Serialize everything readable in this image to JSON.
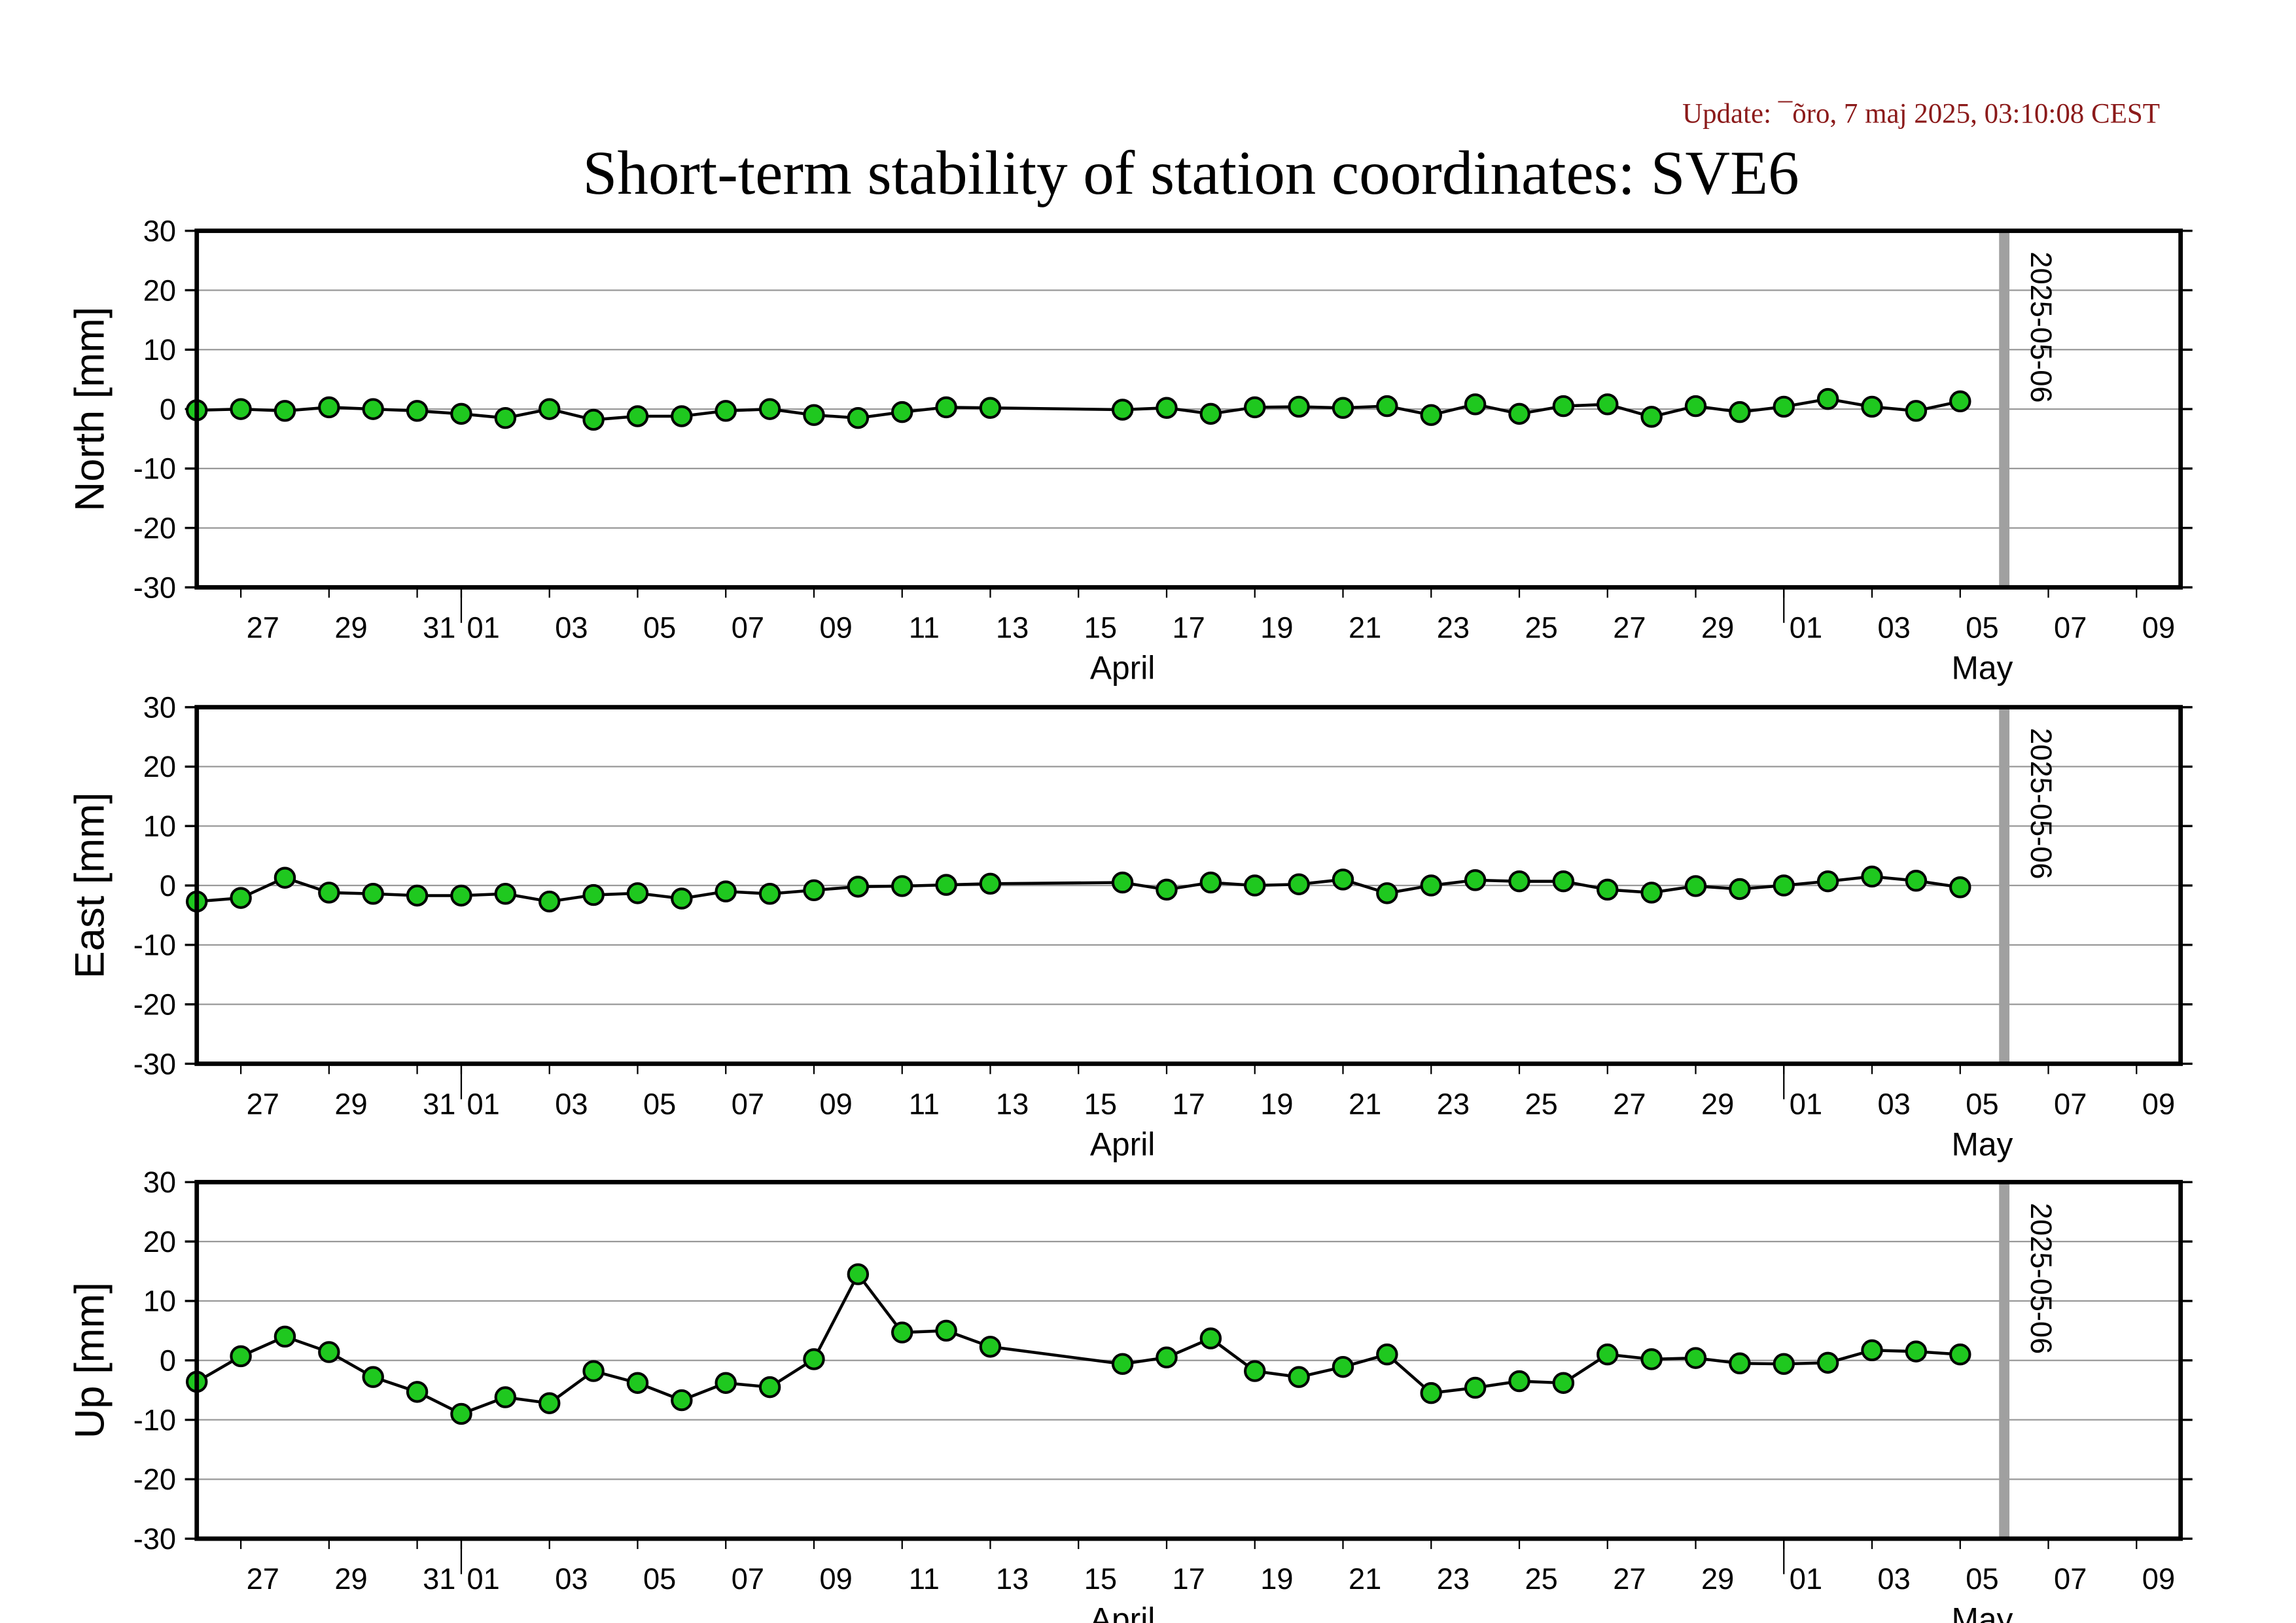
{
  "title": "Short-term stability of station coordinates: SVE6",
  "update": "Update: ¯õro, 7 maj 2025, 03:10:08 CEST",
  "chart_data": [
    {
      "type": "line",
      "ylabel": "North [mm]",
      "x": [
        "2025-03-26",
        "2025-03-27",
        "2025-03-28",
        "2025-03-29",
        "2025-03-30",
        "2025-03-31",
        "2025-04-01",
        "2025-04-02",
        "2025-04-03",
        "2025-04-04",
        "2025-04-05",
        "2025-04-06",
        "2025-04-07",
        "2025-04-08",
        "2025-04-09",
        "2025-04-10",
        "2025-04-11",
        "2025-04-12",
        "2025-04-13",
        "2025-04-16",
        "2025-04-17",
        "2025-04-18",
        "2025-04-19",
        "2025-04-20",
        "2025-04-21",
        "2025-04-22",
        "2025-04-23",
        "2025-04-24",
        "2025-04-25",
        "2025-04-26",
        "2025-04-27",
        "2025-04-28",
        "2025-04-29",
        "2025-04-30",
        "2025-05-01",
        "2025-05-02",
        "2025-05-03",
        "2025-05-04",
        "2025-05-05"
      ],
      "values": [
        -0.2,
        0,
        -0.3,
        0.3,
        0,
        -0.3,
        -0.8,
        -1.5,
        0,
        -1.8,
        -1.2,
        -1.2,
        -0.3,
        0,
        -1,
        -1.5,
        -0.5,
        0.3,
        0.2,
        -0.1,
        0.2,
        -0.8,
        0.3,
        0.4,
        0.2,
        0.5,
        -1,
        0.8,
        -0.8,
        0.5,
        0.8,
        -1.3,
        0.5,
        -0.5,
        0.4,
        1.7,
        0.4,
        -0.3,
        1.3
      ],
      "marker_color": "#1fc81f",
      "line_color": "#000000",
      "xlim": [
        "2025-03-26",
        "2025-05-10"
      ],
      "xticks": [
        {
          "value": "2025-03-27",
          "label": "27"
        },
        {
          "value": "2025-03-29",
          "label": "29"
        },
        {
          "value": "2025-03-31",
          "label": "31"
        },
        {
          "value": "2025-04-01",
          "label": "01"
        },
        {
          "value": "2025-04-03",
          "label": "03"
        },
        {
          "value": "2025-04-05",
          "label": "05"
        },
        {
          "value": "2025-04-07",
          "label": "07"
        },
        {
          "value": "2025-04-09",
          "label": "09"
        },
        {
          "value": "2025-04-11",
          "label": "11"
        },
        {
          "value": "2025-04-13",
          "label": "13"
        },
        {
          "value": "2025-04-15",
          "label": "15"
        },
        {
          "value": "2025-04-17",
          "label": "17"
        },
        {
          "value": "2025-04-19",
          "label": "19"
        },
        {
          "value": "2025-04-21",
          "label": "21"
        },
        {
          "value": "2025-04-23",
          "label": "23"
        },
        {
          "value": "2025-04-25",
          "label": "25"
        },
        {
          "value": "2025-04-27",
          "label": "27"
        },
        {
          "value": "2025-04-29",
          "label": "29"
        },
        {
          "value": "2025-05-01",
          "label": "01"
        },
        {
          "value": "2025-05-03",
          "label": "03"
        },
        {
          "value": "2025-05-05",
          "label": "05"
        },
        {
          "value": "2025-05-07",
          "label": "07"
        },
        {
          "value": "2025-05-09",
          "label": "09"
        }
      ],
      "months": [
        {
          "value": "2025-04",
          "label": "April"
        },
        {
          "value": "2025-05",
          "label": "May"
        }
      ],
      "ylim": [
        -30,
        30
      ],
      "yticks": [
        -30,
        -20,
        -10,
        0,
        10,
        20,
        30
      ],
      "grid": true,
      "vline": "2025-05-06"
    },
    {
      "type": "line",
      "ylabel": "East [mm]",
      "x": [
        "2025-03-26",
        "2025-03-27",
        "2025-03-28",
        "2025-03-29",
        "2025-03-30",
        "2025-03-31",
        "2025-04-01",
        "2025-04-02",
        "2025-04-03",
        "2025-04-04",
        "2025-04-05",
        "2025-04-06",
        "2025-04-07",
        "2025-04-08",
        "2025-04-09",
        "2025-04-10",
        "2025-04-11",
        "2025-04-12",
        "2025-04-13",
        "2025-04-16",
        "2025-04-17",
        "2025-04-18",
        "2025-04-19",
        "2025-04-20",
        "2025-04-21",
        "2025-04-22",
        "2025-04-23",
        "2025-04-24",
        "2025-04-25",
        "2025-04-26",
        "2025-04-27",
        "2025-04-28",
        "2025-04-29",
        "2025-04-30",
        "2025-05-01",
        "2025-05-02",
        "2025-05-03",
        "2025-05-04",
        "2025-05-05"
      ],
      "values": [
        -2.7,
        -2.1,
        1.3,
        -1.2,
        -1.4,
        -1.7,
        -1.7,
        -1.4,
        -2.7,
        -1.6,
        -1.3,
        -2.2,
        -1,
        -1.4,
        -0.8,
        -0.2,
        -0.1,
        0.1,
        0.3,
        0.5,
        -0.7,
        0.5,
        0,
        0.2,
        1,
        -1.3,
        0,
        0.9,
        0.7,
        0.7,
        -0.7,
        -1.2,
        -0.1,
        -0.6,
        0,
        0.7,
        1.5,
        0.8,
        -0.3
      ],
      "marker_color": "#1fc81f",
      "line_color": "#000000",
      "xlim": [
        "2025-03-26",
        "2025-05-10"
      ],
      "xticks": [
        {
          "value": "2025-03-27",
          "label": "27"
        },
        {
          "value": "2025-03-29",
          "label": "29"
        },
        {
          "value": "2025-03-31",
          "label": "31"
        },
        {
          "value": "2025-04-01",
          "label": "01"
        },
        {
          "value": "2025-04-03",
          "label": "03"
        },
        {
          "value": "2025-04-05",
          "label": "05"
        },
        {
          "value": "2025-04-07",
          "label": "07"
        },
        {
          "value": "2025-04-09",
          "label": "09"
        },
        {
          "value": "2025-04-11",
          "label": "11"
        },
        {
          "value": "2025-04-13",
          "label": "13"
        },
        {
          "value": "2025-04-15",
          "label": "15"
        },
        {
          "value": "2025-04-17",
          "label": "17"
        },
        {
          "value": "2025-04-19",
          "label": "19"
        },
        {
          "value": "2025-04-21",
          "label": "21"
        },
        {
          "value": "2025-04-23",
          "label": "23"
        },
        {
          "value": "2025-04-25",
          "label": "25"
        },
        {
          "value": "2025-04-27",
          "label": "27"
        },
        {
          "value": "2025-04-29",
          "label": "29"
        },
        {
          "value": "2025-05-01",
          "label": "01"
        },
        {
          "value": "2025-05-03",
          "label": "03"
        },
        {
          "value": "2025-05-05",
          "label": "05"
        },
        {
          "value": "2025-05-07",
          "label": "07"
        },
        {
          "value": "2025-05-09",
          "label": "09"
        }
      ],
      "months": [
        {
          "value": "2025-04",
          "label": "April"
        },
        {
          "value": "2025-05",
          "label": "May"
        }
      ],
      "ylim": [
        -30,
        30
      ],
      "yticks": [
        -30,
        -20,
        -10,
        0,
        10,
        20,
        30
      ],
      "grid": true,
      "vline": "2025-05-06"
    },
    {
      "type": "line",
      "ylabel": "Up [mm]",
      "x": [
        "2025-03-26",
        "2025-03-27",
        "2025-03-28",
        "2025-03-29",
        "2025-03-30",
        "2025-03-31",
        "2025-04-01",
        "2025-04-02",
        "2025-04-03",
        "2025-04-04",
        "2025-04-05",
        "2025-04-06",
        "2025-04-07",
        "2025-04-08",
        "2025-04-09",
        "2025-04-10",
        "2025-04-11",
        "2025-04-12",
        "2025-04-13",
        "2025-04-16",
        "2025-04-17",
        "2025-04-18",
        "2025-04-19",
        "2025-04-20",
        "2025-04-21",
        "2025-04-22",
        "2025-04-23",
        "2025-04-24",
        "2025-04-25",
        "2025-04-26",
        "2025-04-27",
        "2025-04-28",
        "2025-04-29",
        "2025-04-30",
        "2025-05-01",
        "2025-05-02",
        "2025-05-03",
        "2025-05-04",
        "2025-05-05"
      ],
      "values": [
        -3.6,
        0.7,
        4,
        1.4,
        -2.8,
        -5.3,
        -9,
        -6.2,
        -7.2,
        -1.8,
        -3.8,
        -6.7,
        -3.8,
        -4.5,
        0.2,
        14.5,
        4.7,
        5,
        2.3,
        -0.6,
        0.5,
        3.7,
        -1.8,
        -2.8,
        -1.1,
        1,
        -5.5,
        -4.6,
        -3.5,
        -3.8,
        1,
        0.2,
        0.4,
        -0.5,
        -0.6,
        -0.4,
        1.7,
        1.5,
        1
      ],
      "marker_color": "#1fc81f",
      "line_color": "#000000",
      "xlim": [
        "2025-03-26",
        "2025-05-10"
      ],
      "xticks": [
        {
          "value": "2025-03-27",
          "label": "27"
        },
        {
          "value": "2025-03-29",
          "label": "29"
        },
        {
          "value": "2025-03-31",
          "label": "31"
        },
        {
          "value": "2025-04-01",
          "label": "01"
        },
        {
          "value": "2025-04-03",
          "label": "03"
        },
        {
          "value": "2025-04-05",
          "label": "05"
        },
        {
          "value": "2025-04-07",
          "label": "07"
        },
        {
          "value": "2025-04-09",
          "label": "09"
        },
        {
          "value": "2025-04-11",
          "label": "11"
        },
        {
          "value": "2025-04-13",
          "label": "13"
        },
        {
          "value": "2025-04-15",
          "label": "15"
        },
        {
          "value": "2025-04-17",
          "label": "17"
        },
        {
          "value": "2025-04-19",
          "label": "19"
        },
        {
          "value": "2025-04-21",
          "label": "21"
        },
        {
          "value": "2025-04-23",
          "label": "23"
        },
        {
          "value": "2025-04-25",
          "label": "25"
        },
        {
          "value": "2025-04-27",
          "label": "27"
        },
        {
          "value": "2025-04-29",
          "label": "29"
        },
        {
          "value": "2025-05-01",
          "label": "01"
        },
        {
          "value": "2025-05-03",
          "label": "03"
        },
        {
          "value": "2025-05-05",
          "label": "05"
        },
        {
          "value": "2025-05-07",
          "label": "07"
        },
        {
          "value": "2025-05-09",
          "label": "09"
        }
      ],
      "months": [
        {
          "value": "2025-04",
          "label": "April"
        },
        {
          "value": "2025-05",
          "label": "May"
        }
      ],
      "ylim": [
        -30,
        30
      ],
      "yticks": [
        -30,
        -20,
        -10,
        0,
        10,
        20,
        30
      ],
      "grid": true,
      "vline": "2025-05-06"
    }
  ]
}
